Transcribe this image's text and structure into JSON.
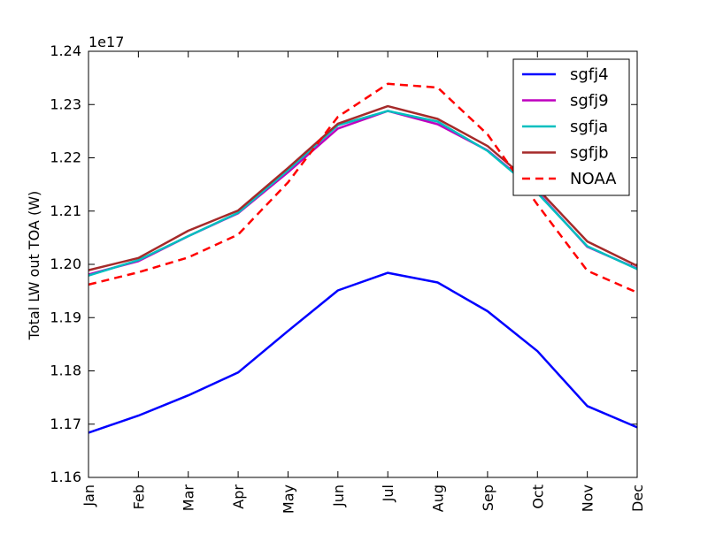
{
  "chart_data": {
    "type": "line",
    "ylabel": "Total LW out TOA (W)",
    "y_offset_label": "1e17",
    "categories": [
      "Jan",
      "Feb",
      "Mar",
      "Apr",
      "May",
      "Jun",
      "Jul",
      "Aug",
      "Sep",
      "Oct",
      "Nov",
      "Dec"
    ],
    "ylim": [
      1.16,
      1.24
    ],
    "y_ticks": [
      "1.16",
      "1.17",
      "1.18",
      "1.19",
      "1.20",
      "1.21",
      "1.22",
      "1.23",
      "1.24"
    ],
    "legend_position": "top-right",
    "grid": false,
    "series": [
      {
        "name": "sgfj4",
        "color": "#0000ff",
        "dash": "solid",
        "values": [
          1.1684,
          1.1716,
          1.1754,
          1.1797,
          1.1875,
          1.1951,
          1.1984,
          1.1966,
          1.1912,
          1.1837,
          1.1734,
          1.1694
        ]
      },
      {
        "name": "sgfj9",
        "color": "#bf00bf",
        "dash": "solid",
        "values": [
          1.1981,
          1.2006,
          1.2053,
          1.2096,
          1.2173,
          1.2255,
          1.2288,
          1.2263,
          1.2214,
          1.2136,
          1.2033,
          1.1992
        ]
      },
      {
        "name": "sgfja",
        "color": "#00bfbf",
        "dash": "solid",
        "values": [
          1.1979,
          1.2008,
          1.2053,
          1.2097,
          1.2177,
          1.2261,
          1.2288,
          1.2268,
          1.2213,
          1.2134,
          1.2034,
          1.1991
        ]
      },
      {
        "name": "sgfjb",
        "color": "#a52a2a",
        "dash": "solid",
        "values": [
          1.1989,
          1.2012,
          1.2063,
          1.2101,
          1.2181,
          1.2264,
          1.2297,
          1.2273,
          1.2222,
          1.2142,
          1.2043,
          1.1997
        ]
      },
      {
        "name": "NOAA",
        "color": "#ff0000",
        "dash": "dashed",
        "values": [
          1.1962,
          1.1985,
          1.2013,
          1.2056,
          1.2154,
          1.2277,
          1.2339,
          1.2332,
          1.2244,
          1.2112,
          1.1988,
          1.1947
        ]
      }
    ]
  }
}
